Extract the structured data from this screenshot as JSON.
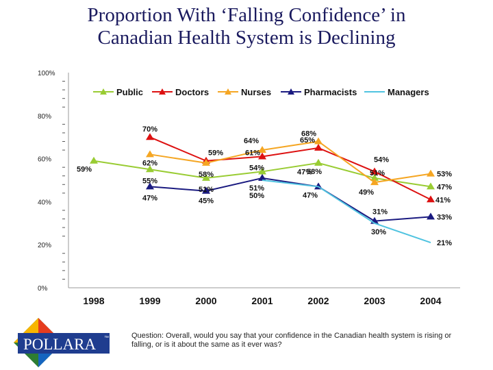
{
  "title": {
    "line1": "Proportion With ‘Falling Confidence’ in",
    "line2": "Canadian Health System is Declining"
  },
  "logo": {
    "text": "POLLARA",
    "tm": "™"
  },
  "question": {
    "label": "Question:",
    "text": "Overall, would you say that your confidence in the Canadian health system is rising or falling, or is it about the same as it ever was?"
  },
  "colors": {
    "public": "#99cc33",
    "doctors": "#dd1111",
    "nurses": "#f5a623",
    "pharmacists": "#1a1a80",
    "managers": "#4fc3e0"
  },
  "chart_data": {
    "type": "line",
    "categories": [
      "1998",
      "1999",
      "2000",
      "2001",
      "2002",
      "2003",
      "2004"
    ],
    "ylim": [
      0,
      100
    ],
    "yticks": [
      "0%",
      "20%",
      "40%",
      "60%",
      "80%",
      "100%"
    ],
    "legend_position": "top",
    "grid": false,
    "series": [
      {
        "name": "Public",
        "color": "#99cc33",
        "marker": "triangle",
        "values": [
          59,
          55,
          51,
          54,
          58,
          51,
          47
        ],
        "labels": [
          "59%",
          "55%",
          "51%",
          "54%",
          "58%",
          "51%",
          "47%"
        ]
      },
      {
        "name": "Doctors",
        "color": "#dd1111",
        "marker": "triangle",
        "values": [
          null,
          70,
          59,
          61,
          65,
          54,
          41
        ],
        "labels": [
          "",
          "70%",
          "59%",
          "61%",
          "65%",
          "54%",
          "41%"
        ]
      },
      {
        "name": "Nurses",
        "color": "#f5a623",
        "marker": "triangle",
        "values": [
          null,
          62,
          58,
          64,
          68,
          49,
          53
        ],
        "labels": [
          "",
          "62%",
          "58%",
          "64%",
          "68%",
          "49%",
          "53%"
        ]
      },
      {
        "name": "Pharmacists",
        "color": "#1a1a80",
        "marker": "triangle",
        "values": [
          null,
          47,
          45,
          51,
          47,
          31,
          33
        ],
        "labels": [
          "",
          "47%",
          "45%",
          "51%",
          "47%",
          "31%",
          "33%"
        ]
      },
      {
        "name": "Managers",
        "color": "#4fc3e0",
        "marker": "none",
        "values": [
          null,
          null,
          null,
          50,
          47,
          30,
          21
        ],
        "labels": [
          "",
          "",
          "",
          "50%",
          "47%",
          "30%",
          "21%"
        ]
      }
    ]
  }
}
